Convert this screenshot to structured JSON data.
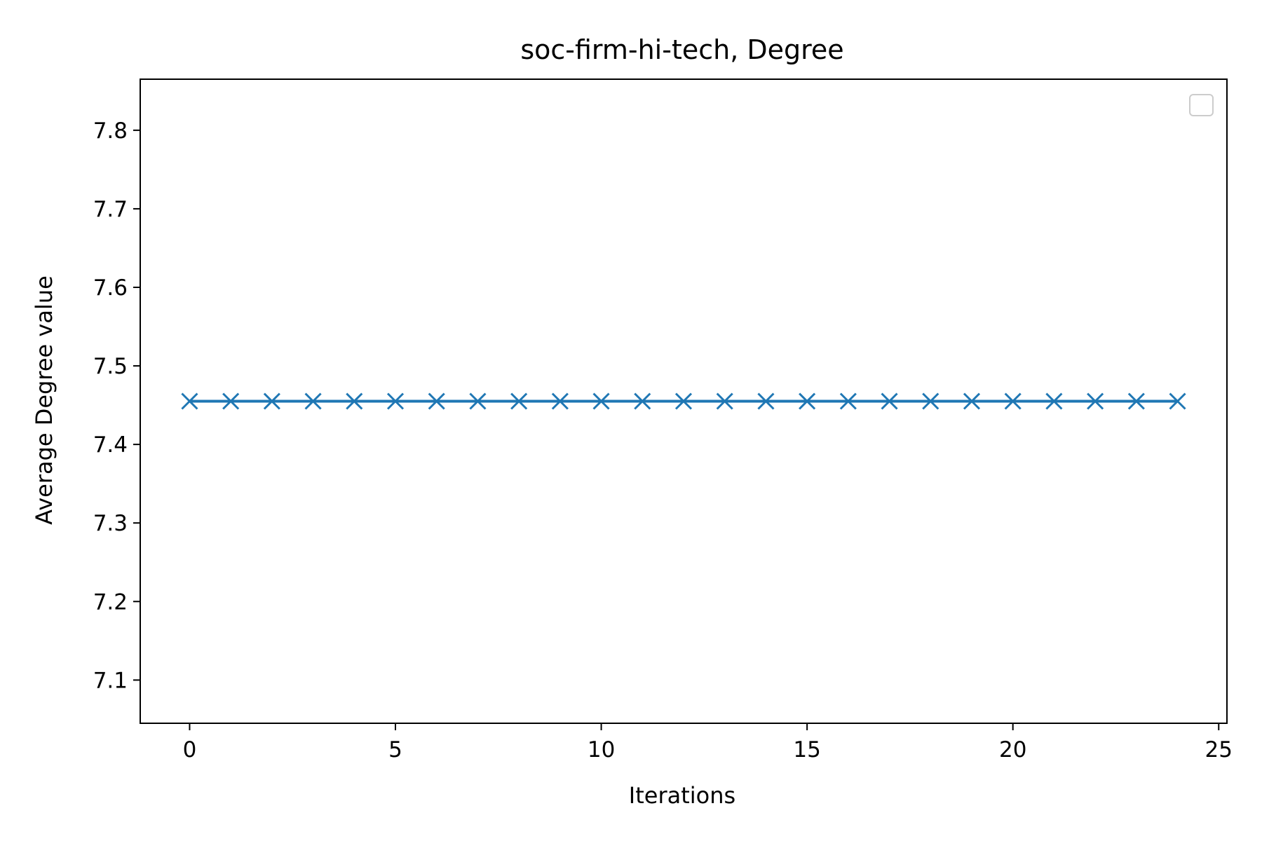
{
  "chart_data": {
    "type": "line",
    "title": "soc-firm-hi-tech, Degree",
    "xlabel": "Iterations",
    "ylabel": "Average Degree value",
    "xlim": [
      -1.2,
      25.2
    ],
    "ylim": [
      7.045,
      7.865
    ],
    "x_ticks": [
      0,
      5,
      10,
      15,
      20,
      25
    ],
    "y_ticks": [
      7.1,
      7.2,
      7.3,
      7.4,
      7.5,
      7.6,
      7.7,
      7.8
    ],
    "grid": false,
    "legend": {
      "placement": "top-right",
      "entries": []
    },
    "series": [
      {
        "color": "#1f77b4",
        "marker": "x",
        "x": [
          0,
          1,
          2,
          3,
          4,
          5,
          6,
          7,
          8,
          9,
          10,
          11,
          12,
          13,
          14,
          15,
          16,
          17,
          18,
          19,
          20,
          21,
          22,
          23,
          24
        ],
        "values": [
          7.455,
          7.455,
          7.455,
          7.455,
          7.455,
          7.455,
          7.455,
          7.455,
          7.455,
          7.455,
          7.455,
          7.455,
          7.455,
          7.455,
          7.455,
          7.455,
          7.455,
          7.455,
          7.455,
          7.455,
          7.455,
          7.455,
          7.455,
          7.455,
          7.455
        ]
      }
    ]
  }
}
